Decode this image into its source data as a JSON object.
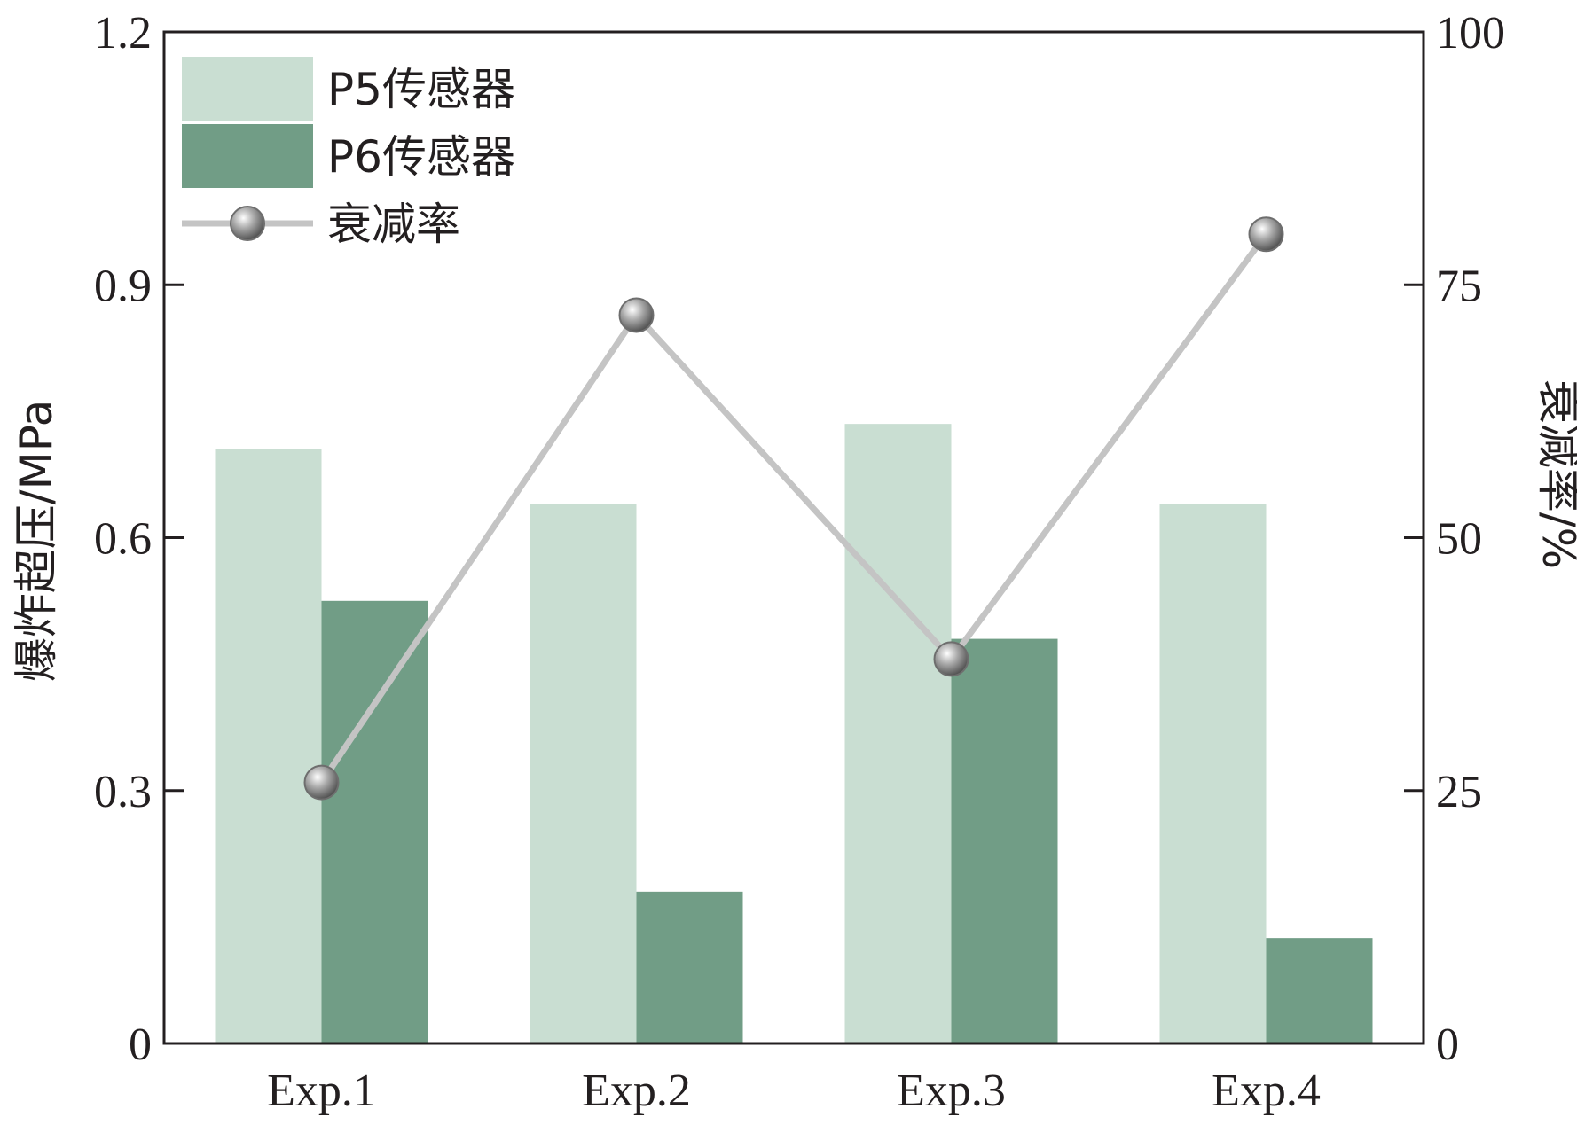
{
  "chart_data": {
    "type": "bar",
    "categories": [
      "Exp.1",
      "Exp.2",
      "Exp.3",
      "Exp.4"
    ],
    "series": [
      {
        "name": "P5传感器",
        "axis": "left",
        "values": [
          0.705,
          0.64,
          0.735,
          0.64
        ],
        "color": "#c9ded2"
      },
      {
        "name": "P6传感器",
        "axis": "left",
        "values": [
          0.525,
          0.18,
          0.48,
          0.125
        ],
        "color": "#719d86"
      },
      {
        "name": "衰减率",
        "axis": "right",
        "type": "line",
        "values": [
          25.8,
          72,
          38,
          80
        ],
        "color": "#c4c4c4",
        "marker_color": "#9a9a9a"
      }
    ],
    "ylabel": "爆炸超压/MPa",
    "y2label": "衰减率/%",
    "ylim": [
      0,
      1.2
    ],
    "y2lim": [
      0,
      100
    ],
    "yticks": [
      "0",
      "0.3",
      "0.6",
      "0.9",
      "1.2"
    ],
    "y2ticks": [
      "0",
      "25",
      "50",
      "75",
      "100"
    ],
    "legend": "top-left",
    "grid": false
  }
}
